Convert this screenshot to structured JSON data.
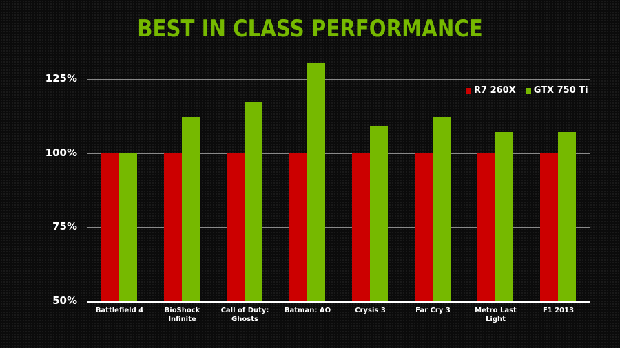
{
  "title": "BEST IN CLASS PERFORMANCE",
  "legend": [
    {
      "label": "R7 260X",
      "color": "#cc0000"
    },
    {
      "label": "GTX 750 Ti",
      "color": "#76b900"
    }
  ],
  "y_ticks": [
    "125%",
    "100%",
    "75%",
    "50%"
  ],
  "x_labels": [
    "Battlefield 4",
    "BioShock Infinite",
    "Call of Duty: Ghosts",
    "Batman: AO",
    "Crysis 3",
    "Far Cry 3",
    "Metro Last Light",
    "F1 2013"
  ],
  "chart_data": {
    "type": "bar",
    "title": "BEST IN CLASS PERFORMANCE",
    "xlabel": "",
    "ylabel": "",
    "categories": [
      "Battlefield 4",
      "BioShock Infinite",
      "Call of Duty: Ghosts",
      "Batman: AO",
      "Crysis 3",
      "Far Cry 3",
      "Metro Last Light",
      "F1 2013"
    ],
    "series": [
      {
        "name": "R7 260X",
        "color": "#cc0000",
        "values": [
          100,
          100,
          100,
          100,
          100,
          100,
          100,
          100
        ]
      },
      {
        "name": "GTX 750 Ti",
        "color": "#76b900",
        "values": [
          100,
          112,
          117,
          130,
          109,
          112,
          107,
          107
        ]
      }
    ],
    "ylim": [
      50,
      125
    ],
    "y_ticks": [
      50,
      75,
      100,
      125
    ],
    "y_tick_format": "percent",
    "grid": true,
    "legend_position": "top-right"
  }
}
